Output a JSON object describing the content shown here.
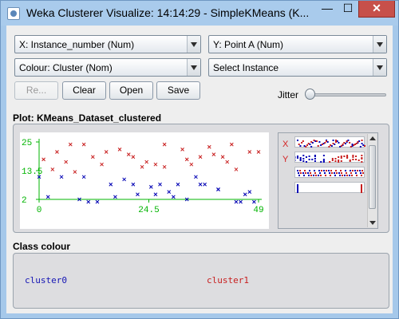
{
  "window": {
    "title": "Weka Clusterer Visualize: 14:14:29 - SimpleKMeans (K..."
  },
  "controls": {
    "x_axis": "X: Instance_number (Num)",
    "y_axis": "Y: Point A (Num)",
    "colour": "Colour: Cluster (Nom)",
    "select": "Select Instance",
    "reset_label": "Re...",
    "clear_label": "Clear",
    "open_label": "Open",
    "save_label": "Save",
    "jitter_label": "Jitter",
    "jitter_value": 0
  },
  "plot": {
    "title": "Plot: KMeans_Dataset_clustered",
    "x_label": "X",
    "y_label": "Y"
  },
  "chart_data": {
    "type": "scatter",
    "x_ticks": [
      "0",
      "24.5",
      "49"
    ],
    "y_ticks": [
      "25",
      "13.5",
      "2"
    ],
    "xlim": [
      0,
      49
    ],
    "ylim": [
      2,
      25
    ],
    "series": [
      {
        "name": "cluster0",
        "color": "#0000b4",
        "points": [
          [
            0,
            11
          ],
          [
            2,
            3
          ],
          [
            9,
            2
          ],
          [
            11,
            1
          ],
          [
            13,
            1
          ],
          [
            10,
            11
          ],
          [
            17,
            3
          ],
          [
            19,
            10
          ],
          [
            22,
            4
          ],
          [
            26,
            4
          ],
          [
            25,
            7
          ],
          [
            27,
            8
          ],
          [
            30,
            3
          ],
          [
            29,
            5
          ],
          [
            31,
            8
          ],
          [
            33,
            2
          ],
          [
            35,
            11
          ],
          [
            36,
            8
          ],
          [
            37,
            8
          ],
          [
            40,
            6
          ],
          [
            40,
            6
          ],
          [
            44,
            1
          ],
          [
            45,
            1
          ],
          [
            46,
            4
          ],
          [
            48,
            1
          ],
          [
            47,
            5
          ],
          [
            16,
            8
          ],
          [
            21,
            8
          ],
          [
            5,
            11
          ]
        ]
      },
      {
        "name": "cluster1",
        "color": "#c81e1e",
        "points": [
          [
            1,
            18
          ],
          [
            3,
            14
          ],
          [
            4,
            21
          ],
          [
            6,
            17
          ],
          [
            7,
            24
          ],
          [
            8,
            13
          ],
          [
            10,
            24
          ],
          [
            12,
            19
          ],
          [
            15,
            21
          ],
          [
            18,
            22
          ],
          [
            20,
            20
          ],
          [
            21,
            19
          ],
          [
            23,
            15
          ],
          [
            24,
            17
          ],
          [
            26,
            16
          ],
          [
            28,
            15
          ],
          [
            28,
            24
          ],
          [
            32,
            22
          ],
          [
            33,
            18
          ],
          [
            34,
            16
          ],
          [
            36,
            19
          ],
          [
            39,
            20
          ],
          [
            41,
            19
          ],
          [
            43,
            24
          ],
          [
            44,
            14
          ],
          [
            47,
            21
          ],
          [
            49,
            21
          ],
          [
            42,
            17
          ],
          [
            38,
            23
          ],
          [
            14,
            16
          ]
        ]
      }
    ]
  },
  "class_colour": {
    "title": "Class colour",
    "items": [
      {
        "label": "cluster0",
        "color": "#1414b4"
      },
      {
        "label": "cluster1",
        "color": "#c81e1e"
      }
    ]
  }
}
